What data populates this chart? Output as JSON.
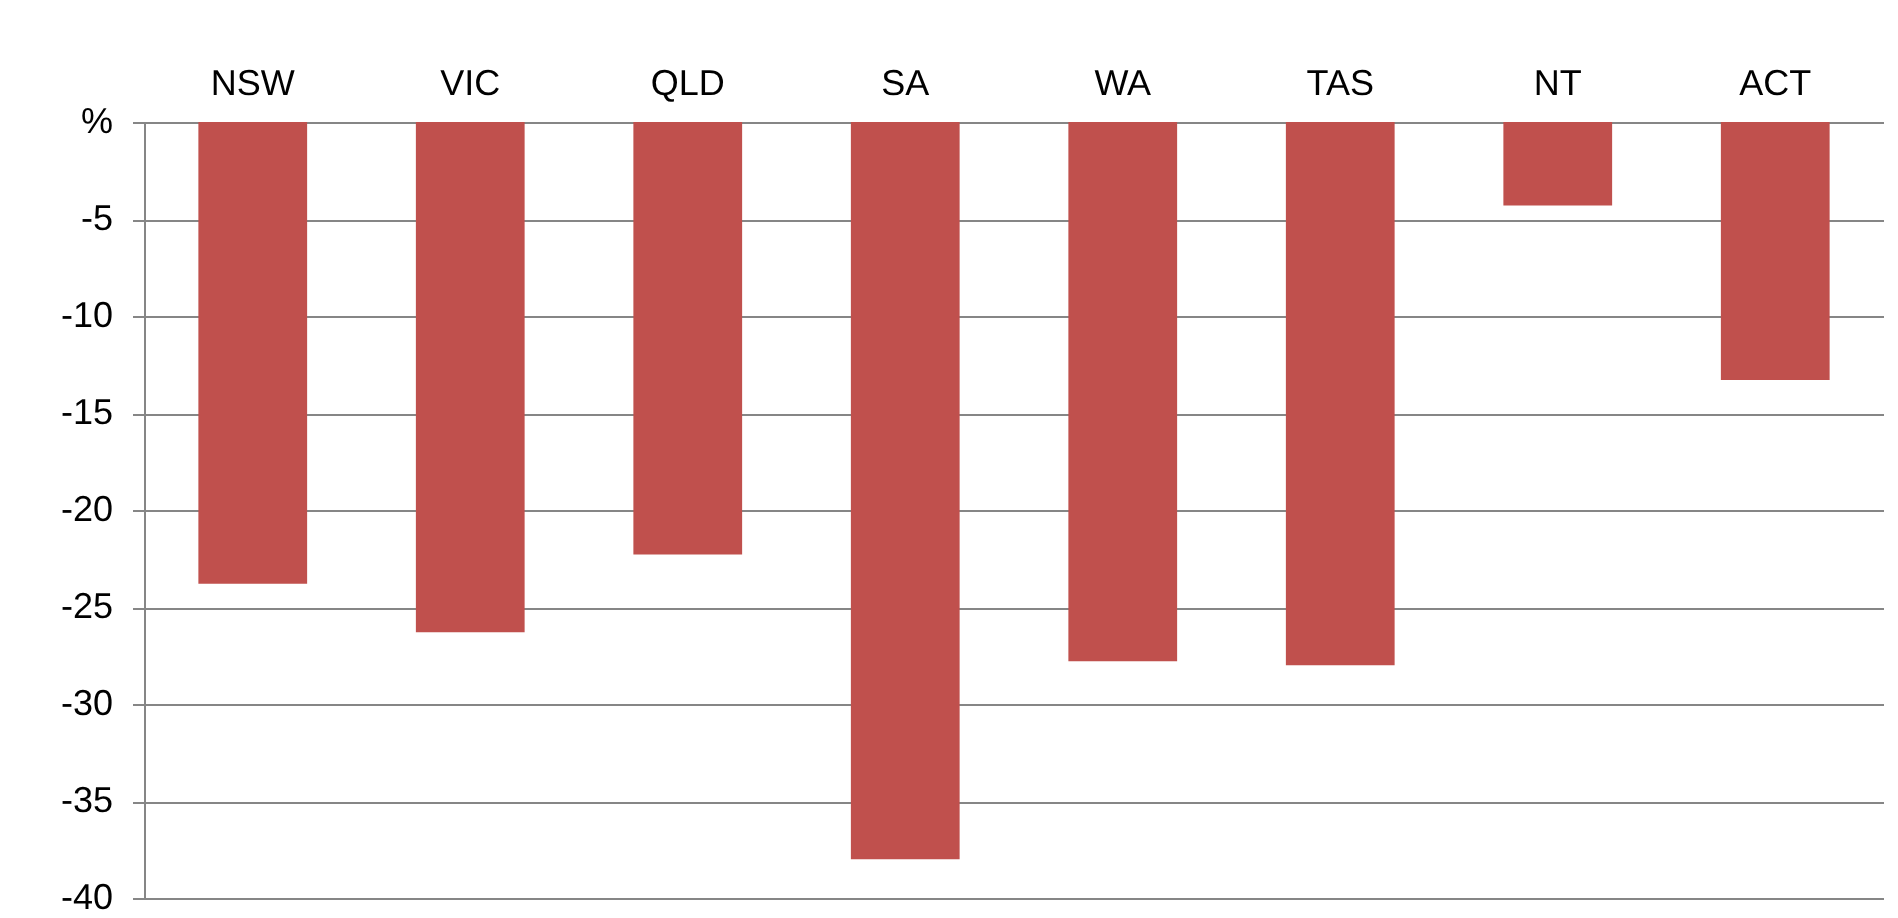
{
  "chart_data": {
    "type": "bar",
    "categories": [
      "NSW",
      "VIC",
      "QLD",
      "SA",
      "WA",
      "TAS",
      "NT",
      "ACT"
    ],
    "values": [
      -23.8,
      -26.3,
      -22.3,
      -38.0,
      -27.8,
      -28.0,
      -4.3,
      -13.3
    ],
    "color": "#c0504d",
    "ylim": [
      -40,
      0
    ],
    "yticks": [
      {
        "value": 0,
        "label": "%"
      },
      -5,
      -10,
      -15,
      -20,
      -25,
      -30,
      -35,
      -40
    ],
    "grid": "y"
  }
}
